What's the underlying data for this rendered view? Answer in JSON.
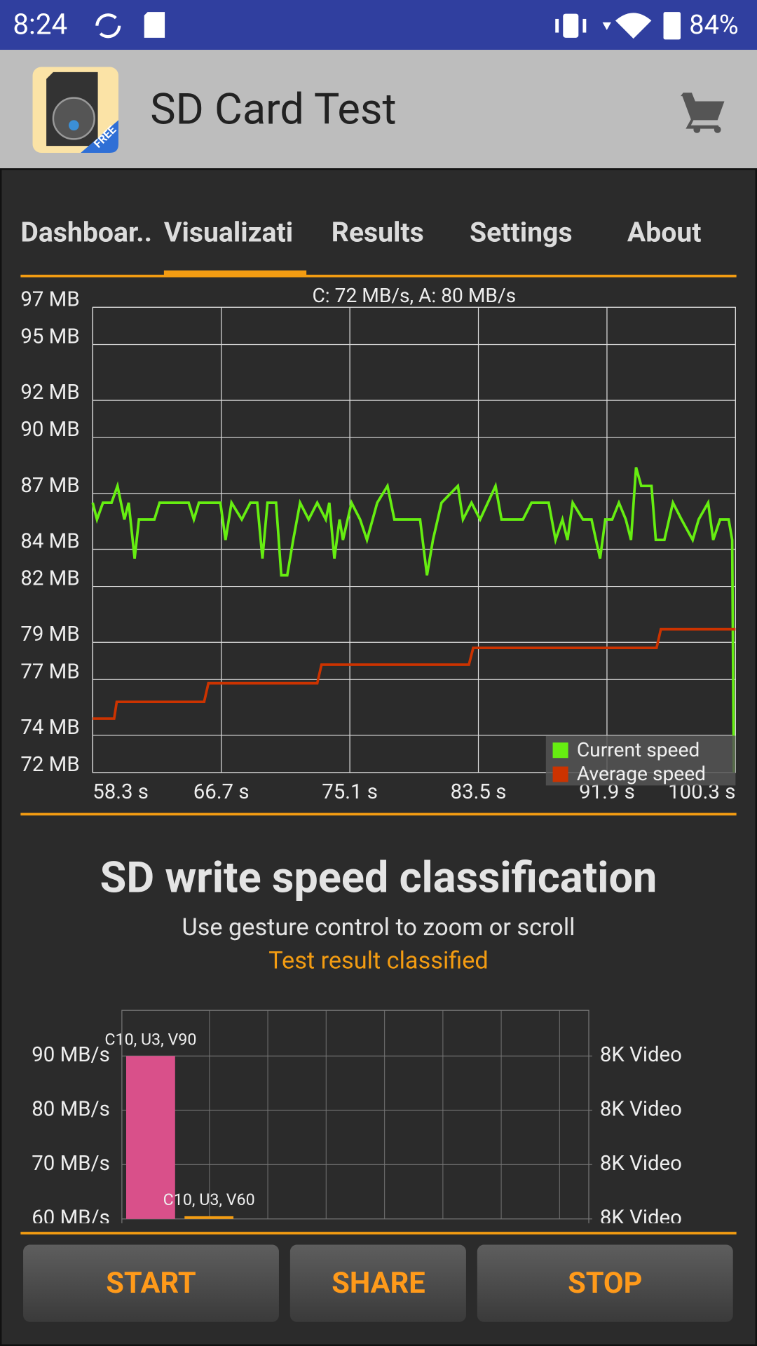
{
  "status_bar": {
    "time": "8:24",
    "battery": "84%"
  },
  "app_bar": {
    "title": "SD Card Test",
    "badge": "FREE"
  },
  "tabs": [
    "Dashboar..",
    "Visualizati",
    "Results",
    "Settings",
    "About"
  ],
  "chart_data": [
    {
      "type": "line",
      "title": "C: 72 MB/s, A: 80 MB/s",
      "xlim": [
        58.3,
        100.3
      ],
      "xticks": [
        {
          "value": 58.3,
          "label": "58.3 s"
        },
        {
          "value": 66.7,
          "label": "66.7 s"
        },
        {
          "value": 75.1,
          "label": "75.1 s"
        },
        {
          "value": 83.5,
          "label": "83.5 s"
        },
        {
          "value": 91.9,
          "label": "91.9 s"
        },
        {
          "value": 100.3,
          "label": "100.3 s"
        }
      ],
      "ylim": [
        72,
        97
      ],
      "yticks": [
        {
          "value": 97,
          "label": "97 MB"
        },
        {
          "value": 95,
          "label": "95 MB"
        },
        {
          "value": 92,
          "label": "92 MB"
        },
        {
          "value": 90,
          "label": "90 MB"
        },
        {
          "value": 87,
          "label": "87 MB"
        },
        {
          "value": 84,
          "label": "84 MB"
        },
        {
          "value": 82,
          "label": "82 MB"
        },
        {
          "value": 79,
          "label": "79 MB"
        },
        {
          "value": 77,
          "label": "77 MB"
        },
        {
          "value": 74,
          "label": "74 MB"
        },
        {
          "value": 72,
          "label": "72 MB"
        }
      ],
      "grid": true,
      "legend": "bottom-right",
      "series": [
        {
          "name": "Current speed",
          "color": "#66ee11",
          "x": [
            58.3,
            58.58,
            58.97,
            59.53,
            59.92,
            60.37,
            60.65,
            61.04,
            61.32,
            62.33,
            62.67,
            63.45,
            64.57,
            64.91,
            65.24,
            66.64,
            66.98,
            67.37,
            68.04,
            68.6,
            69.05,
            69.39,
            69.72,
            70.28,
            70.62,
            71.01,
            71.4,
            71.85,
            72.41,
            72.97,
            73.53,
            73.76,
            74.09,
            74.43,
            74.65,
            75.21,
            75.77,
            76.22,
            76.89,
            77.56,
            78.01,
            79.69,
            80.14,
            80.53,
            81.09,
            82.16,
            82.49,
            83.05,
            83.61,
            84.62,
            85.01,
            85.85,
            86.41,
            86.97,
            88.09,
            88.54,
            88.99,
            89.32,
            89.66,
            90.33,
            90.89,
            91.45,
            91.79,
            92.24,
            92.68,
            93.13,
            93.47,
            93.8,
            94.14,
            94.81,
            95.09,
            95.65,
            96.21,
            96.77,
            97.5,
            97.89,
            98.51,
            98.84,
            99.29,
            99.85,
            100.08,
            100.19
          ],
          "values": [
            86.5,
            85.6,
            86.5,
            86.5,
            87.4,
            85.6,
            86.5,
            83.5,
            85.6,
            85.6,
            86.5,
            86.5,
            86.5,
            85.6,
            86.5,
            86.5,
            84.5,
            86.5,
            85.6,
            86.5,
            86.5,
            83.5,
            86.5,
            86.5,
            82.6,
            82.6,
            84.5,
            86.5,
            85.6,
            86.5,
            85.6,
            86.5,
            83.5,
            85.6,
            84.5,
            86.5,
            85.6,
            84.5,
            86.5,
            87.4,
            85.6,
            85.6,
            82.6,
            84.5,
            86.5,
            87.4,
            85.6,
            86.5,
            85.6,
            87.4,
            85.6,
            85.6,
            85.6,
            86.5,
            86.5,
            84.5,
            85.6,
            84.5,
            86.5,
            85.6,
            85.6,
            83.5,
            85.6,
            85.6,
            86.5,
            85.6,
            84.5,
            88.4,
            87.4,
            87.4,
            84.5,
            84.5,
            86.5,
            85.6,
            84.5,
            85.6,
            86.5,
            84.5,
            85.6,
            85.6,
            84.5,
            72
          ]
        },
        {
          "name": "Average speed",
          "color": "#cc3300",
          "x": [
            58.3,
            59.7,
            59.87,
            65.58,
            65.86,
            72.97,
            73.25,
            82.88,
            83.16,
            95.14,
            95.42,
            100.3
          ],
          "values": [
            74.9,
            74.9,
            75.8,
            75.8,
            76.8,
            76.8,
            77.8,
            77.8,
            78.7,
            78.7,
            79.7,
            79.7
          ]
        }
      ]
    },
    {
      "type": "bar",
      "categories": [
        "C10, U3, V90",
        "C10, U3, V60"
      ],
      "values": [
        90,
        60.5
      ],
      "colors": [
        "#d9508a",
        "#f39c12"
      ],
      "ylim": [
        60,
        98.4
      ],
      "yticks": [
        {
          "value": 90,
          "label": "90 MB/s"
        },
        {
          "value": 80,
          "label": "80 MB/s"
        },
        {
          "value": 70,
          "label": "70 MB/s"
        },
        {
          "value": 60,
          "label": "60 MB/s"
        }
      ],
      "y2lim": [
        60,
        98.4
      ],
      "y2ticks": [
        {
          "value": 90,
          "label": "8K Video"
        },
        {
          "value": 80,
          "label": "8K Video"
        },
        {
          "value": 70,
          "label": "8K Video"
        },
        {
          "value": 60,
          "label": "8K Video"
        }
      ],
      "grid": true
    }
  ],
  "classification": {
    "title": "SD write speed classification",
    "hint": "Use gesture control to zoom or scroll",
    "status": "Test result classified"
  },
  "buttons": [
    "START",
    "SHARE",
    "STOP"
  ]
}
